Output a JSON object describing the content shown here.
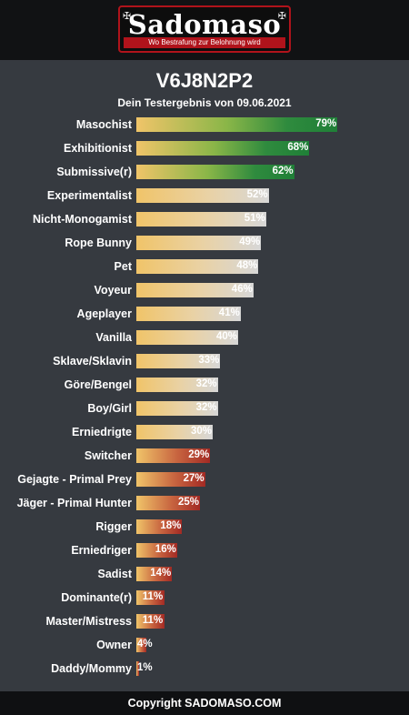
{
  "brand": {
    "name": "Sadomaso",
    "tagline": "Wo Bestrafung zur Belohnung wird"
  },
  "result": {
    "code": "V6J8N2P2",
    "subtitle": "Dein Testergebnis von 09.06.2021"
  },
  "items": [
    {
      "label": "Masochist",
      "value": 79,
      "pct": "79%"
    },
    {
      "label": "Exhibitionist",
      "value": 68,
      "pct": "68%"
    },
    {
      "label": "Submissive(r)",
      "value": 62,
      "pct": "62%"
    },
    {
      "label": "Experimentalist",
      "value": 52,
      "pct": "52%"
    },
    {
      "label": "Nicht-Monogamist",
      "value": 51,
      "pct": "51%"
    },
    {
      "label": "Rope Bunny",
      "value": 49,
      "pct": "49%"
    },
    {
      "label": "Pet",
      "value": 48,
      "pct": "48%"
    },
    {
      "label": "Voyeur",
      "value": 46,
      "pct": "46%"
    },
    {
      "label": "Ageplayer",
      "value": 41,
      "pct": "41%"
    },
    {
      "label": "Vanilla",
      "value": 40,
      "pct": "40%"
    },
    {
      "label": "Sklave/Sklavin",
      "value": 33,
      "pct": "33%"
    },
    {
      "label": "Göre/Bengel",
      "value": 32,
      "pct": "32%"
    },
    {
      "label": "Boy/Girl",
      "value": 32,
      "pct": "32%"
    },
    {
      "label": "Erniedrigte",
      "value": 30,
      "pct": "30%"
    },
    {
      "label": "Switcher",
      "value": 29,
      "pct": "29%"
    },
    {
      "label": "Gejagte - Primal Prey",
      "value": 27,
      "pct": "27%"
    },
    {
      "label": "Jäger - Primal Hunter",
      "value": 25,
      "pct": "25%"
    },
    {
      "label": "Rigger",
      "value": 18,
      "pct": "18%"
    },
    {
      "label": "Erniedriger",
      "value": 16,
      "pct": "16%"
    },
    {
      "label": "Sadist",
      "value": 14,
      "pct": "14%"
    },
    {
      "label": "Dominante(r)",
      "value": 11,
      "pct": "11%"
    },
    {
      "label": "Master/Mistress",
      "value": 11,
      "pct": "11%"
    },
    {
      "label": "Owner",
      "value": 4,
      "pct": "4%"
    },
    {
      "label": "Daddy/Mommy",
      "value": 1,
      "pct": "1%"
    }
  ],
  "footer": "Copyright SADOMASO.COM"
}
